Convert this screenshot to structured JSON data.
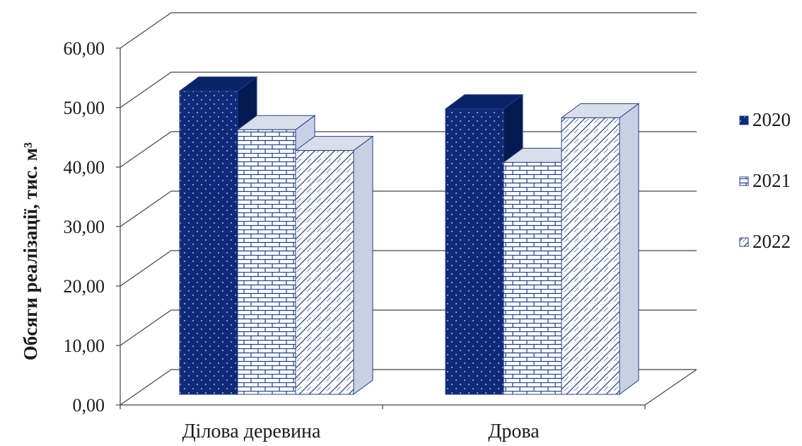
{
  "chart_data": {
    "type": "bar",
    "categories": [
      "Ділова деревина",
      "Дрова"
    ],
    "series": [
      {
        "name": "2020",
        "values": [
          51.0,
          48.0
        ],
        "color": "#0e2a78",
        "pattern": "dots"
      },
      {
        "name": "2021",
        "values": [
          44.5,
          39.0
        ],
        "color": "#1f3f86",
        "pattern": "bricks"
      },
      {
        "name": "2022",
        "values": [
          41.0,
          46.5
        ],
        "color": "#1f3f86",
        "pattern": "diagonal"
      }
    ],
    "title": "",
    "xlabel": "",
    "ylabel": "Обсяги реалізації, тис. м³",
    "ylim": [
      0,
      60
    ],
    "yticks": [
      "0,00",
      "10,00",
      "20,00",
      "30,00",
      "40,00",
      "50,00",
      "60,00"
    ],
    "grid": true,
    "legend_position": "right",
    "style": "3d-clustered-column"
  }
}
